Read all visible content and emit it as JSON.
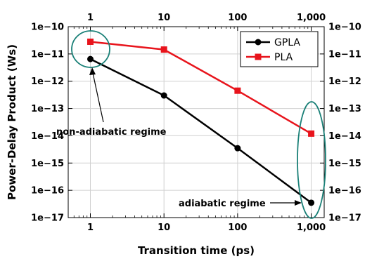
{
  "chart_data": {
    "type": "line",
    "x_scale": "log",
    "y_scale": "log",
    "xlabel": "Transition time (ps)",
    "ylabel": "Power-Delay Product (Ws)",
    "x_ticks": [
      1,
      10,
      100,
      1000
    ],
    "x_tick_labels": [
      "1",
      "10",
      "100",
      "1,000"
    ],
    "y_ticks_exp": [
      -10,
      -11,
      -12,
      -13,
      -14,
      -15,
      -16,
      -17
    ],
    "y_tick_labels": [
      "1e−10",
      "1e−11",
      "1e−12",
      "1e−13",
      "1e−14",
      "1e−15",
      "1e−16",
      "1e−17"
    ],
    "xlim": [
      0.5,
      1500
    ],
    "ylim": [
      1e-17,
      1e-10
    ],
    "series": [
      {
        "name": "GPLA",
        "color": "#000000",
        "marker": "circle",
        "x": [
          1,
          10,
          100,
          1000
        ],
        "y": [
          6.5e-12,
          3e-13,
          3.5e-15,
          3.5e-17
        ]
      },
      {
        "name": "PLA",
        "color": "#e8141c",
        "marker": "square",
        "x": [
          1,
          10,
          100,
          1000
        ],
        "y": [
          2.8e-11,
          1.45e-11,
          4.5e-13,
          1.2e-14
        ]
      }
    ],
    "legend_position": "top-right",
    "annotations": [
      {
        "text": "non-adiabatic regime",
        "target": "low transition time"
      },
      {
        "text": "adiabatic regime",
        "target": "high transition time"
      }
    ],
    "annotation_color": "#1a8077"
  }
}
